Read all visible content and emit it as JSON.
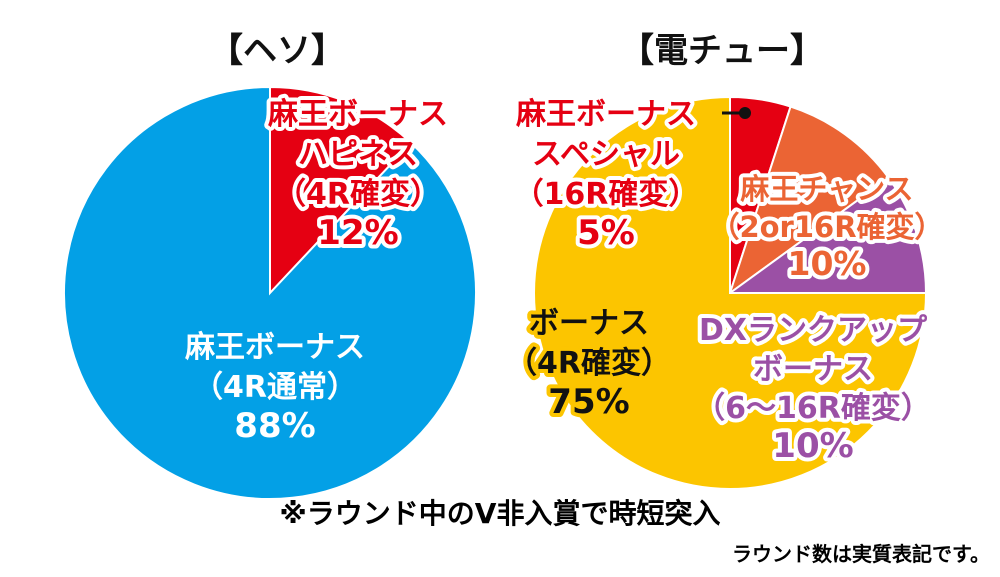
{
  "chart_data": [
    {
      "type": "pie",
      "title": "【ヘソ】",
      "slices": [
        {
          "label_lines": [
            "麻王ボーナス",
            "ハピネス",
            "（4R確変）",
            "12%"
          ],
          "value": 12,
          "color": "#e50012"
        },
        {
          "label_lines": [
            "麻王ボーナス",
            "（4R通常）",
            "88%"
          ],
          "value": 88,
          "color": "#03a0e6"
        }
      ]
    },
    {
      "type": "pie",
      "title": "【電チュー】",
      "slices": [
        {
          "label_lines": [
            "麻王ボーナス",
            "スペシャル",
            "（16R確変）",
            "5%"
          ],
          "value": 5,
          "color": "#e50012"
        },
        {
          "label_lines": [
            "麻王チャンス",
            "（2or16R確変）",
            "10%"
          ],
          "value": 10,
          "color": "#eb6434"
        },
        {
          "label_lines": [
            "DXランクアップ",
            "ボーナス",
            "（6〜16R確変）",
            "10%"
          ],
          "value": 10,
          "color": "#9b50a5"
        },
        {
          "label_lines": [
            "ボーナス",
            "（4R確変）",
            "75%"
          ],
          "value": 75,
          "color": "#fcc500"
        }
      ]
    }
  ],
  "notes": {
    "main": "※ラウンド中のV非入賞で時短突入",
    "sub": "ラウンド数は実質表記です。"
  }
}
